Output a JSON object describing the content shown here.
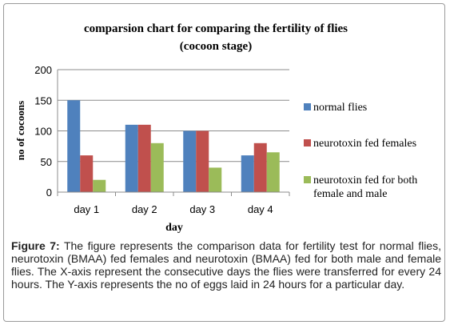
{
  "chart_data": {
    "type": "bar",
    "title": "comparsion chart for comparing the fertility of flies",
    "subtitle": "(cocoon stage)",
    "xlabel": "day",
    "ylabel": "no of cocoons",
    "categories": [
      "day 1",
      "day 2",
      "day 3",
      "day 4"
    ],
    "ylim": [
      0,
      200
    ],
    "yticks": [
      0,
      50,
      100,
      150,
      200
    ],
    "grid": true,
    "legend_position": "right",
    "series": [
      {
        "name": "normal flies",
        "color": "#4f81bd",
        "values": [
          150,
          110,
          100,
          60
        ]
      },
      {
        "name": "neurotoxin fed females",
        "color": "#c0504d",
        "values": [
          60,
          110,
          100,
          80
        ]
      },
      {
        "name": "neurotoxin fed for both female and male",
        "legend_lines": [
          "neurotoxin fed for both",
          "female and male"
        ],
        "color": "#9bbb59",
        "values": [
          20,
          80,
          40,
          65
        ]
      }
    ]
  },
  "caption": {
    "label": "Figure 7:",
    "text": " The figure represents the comparison data for fertility test for normal flies, neurotoxin (BMAA) fed females and neurotoxin (BMAA) fed for both male and female flies. The X-axis represent the consecutive days the flies were transferred for every 24 hours. The Y-axis represents the no of eggs laid in 24 hours for a particular day."
  }
}
